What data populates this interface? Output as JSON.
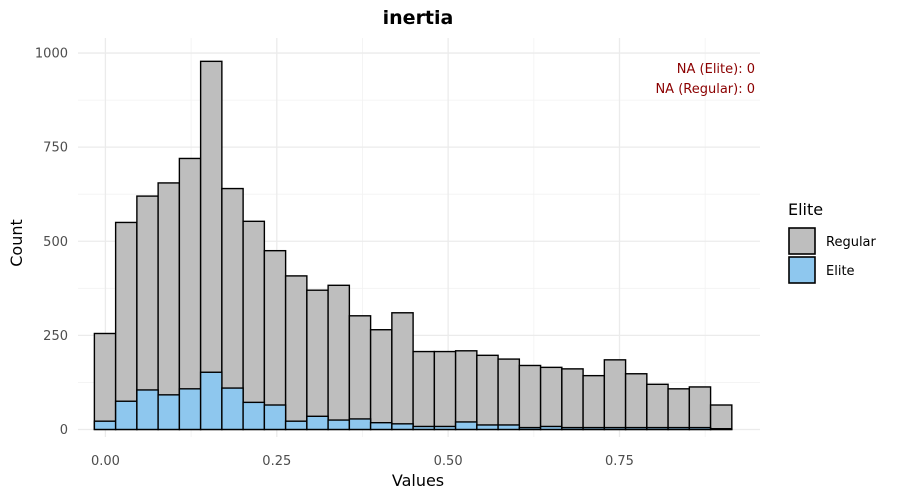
{
  "chart_data": {
    "type": "bar",
    "title": "inertia",
    "xlabel": "Values",
    "ylabel": "Count",
    "xlim": [
      -0.04,
      0.955
    ],
    "ylim": [
      -20,
      1040
    ],
    "x_ticks": [
      0,
      0.25,
      0.5,
      0.75
    ],
    "x_tick_labels": [
      "0.00",
      "0.25",
      "0.50",
      "0.75"
    ],
    "y_ticks": [
      0,
      250,
      500,
      750,
      1000
    ],
    "y_tick_labels": [
      "0",
      "250",
      "500",
      "750",
      "1000"
    ],
    "bin_width": 0.031,
    "bin_centers": [
      -0.0006,
      0.0304,
      0.0614,
      0.0924,
      0.1234,
      0.1544,
      0.1854,
      0.2164,
      0.2474,
      0.2784,
      0.3094,
      0.3404,
      0.3714,
      0.4024,
      0.4334,
      0.4644,
      0.4954,
      0.5264,
      0.5574,
      0.5884,
      0.6194,
      0.6504,
      0.6814,
      0.7124,
      0.7434,
      0.7744,
      0.8054,
      0.8364,
      0.8674,
      0.8984
    ],
    "series": [
      {
        "name": "Regular",
        "color": "#bebebe",
        "values": [
          255,
          550,
          620,
          655,
          720,
          978,
          640,
          553,
          475,
          408,
          370,
          383,
          302,
          265,
          310,
          207,
          207,
          209,
          197,
          187,
          170,
          165,
          161,
          143,
          185,
          148,
          120,
          108,
          113,
          65
        ]
      },
      {
        "name": "Elite",
        "color": "#8ec7ee",
        "values": [
          22,
          75,
          105,
          92,
          108,
          152,
          110,
          72,
          65,
          22,
          35,
          25,
          28,
          18,
          15,
          8,
          8,
          20,
          12,
          12,
          5,
          8,
          5,
          5,
          5,
          5,
          5,
          5,
          5,
          2
        ]
      }
    ],
    "grid": true,
    "legend": {
      "title": "Elite",
      "placement": "right",
      "entries": [
        "Regular",
        "Elite"
      ]
    },
    "annotations": {
      "color": "#8b0000",
      "lines": [
        "NA (Elite): 0",
        "NA (Regular): 0"
      ]
    }
  }
}
